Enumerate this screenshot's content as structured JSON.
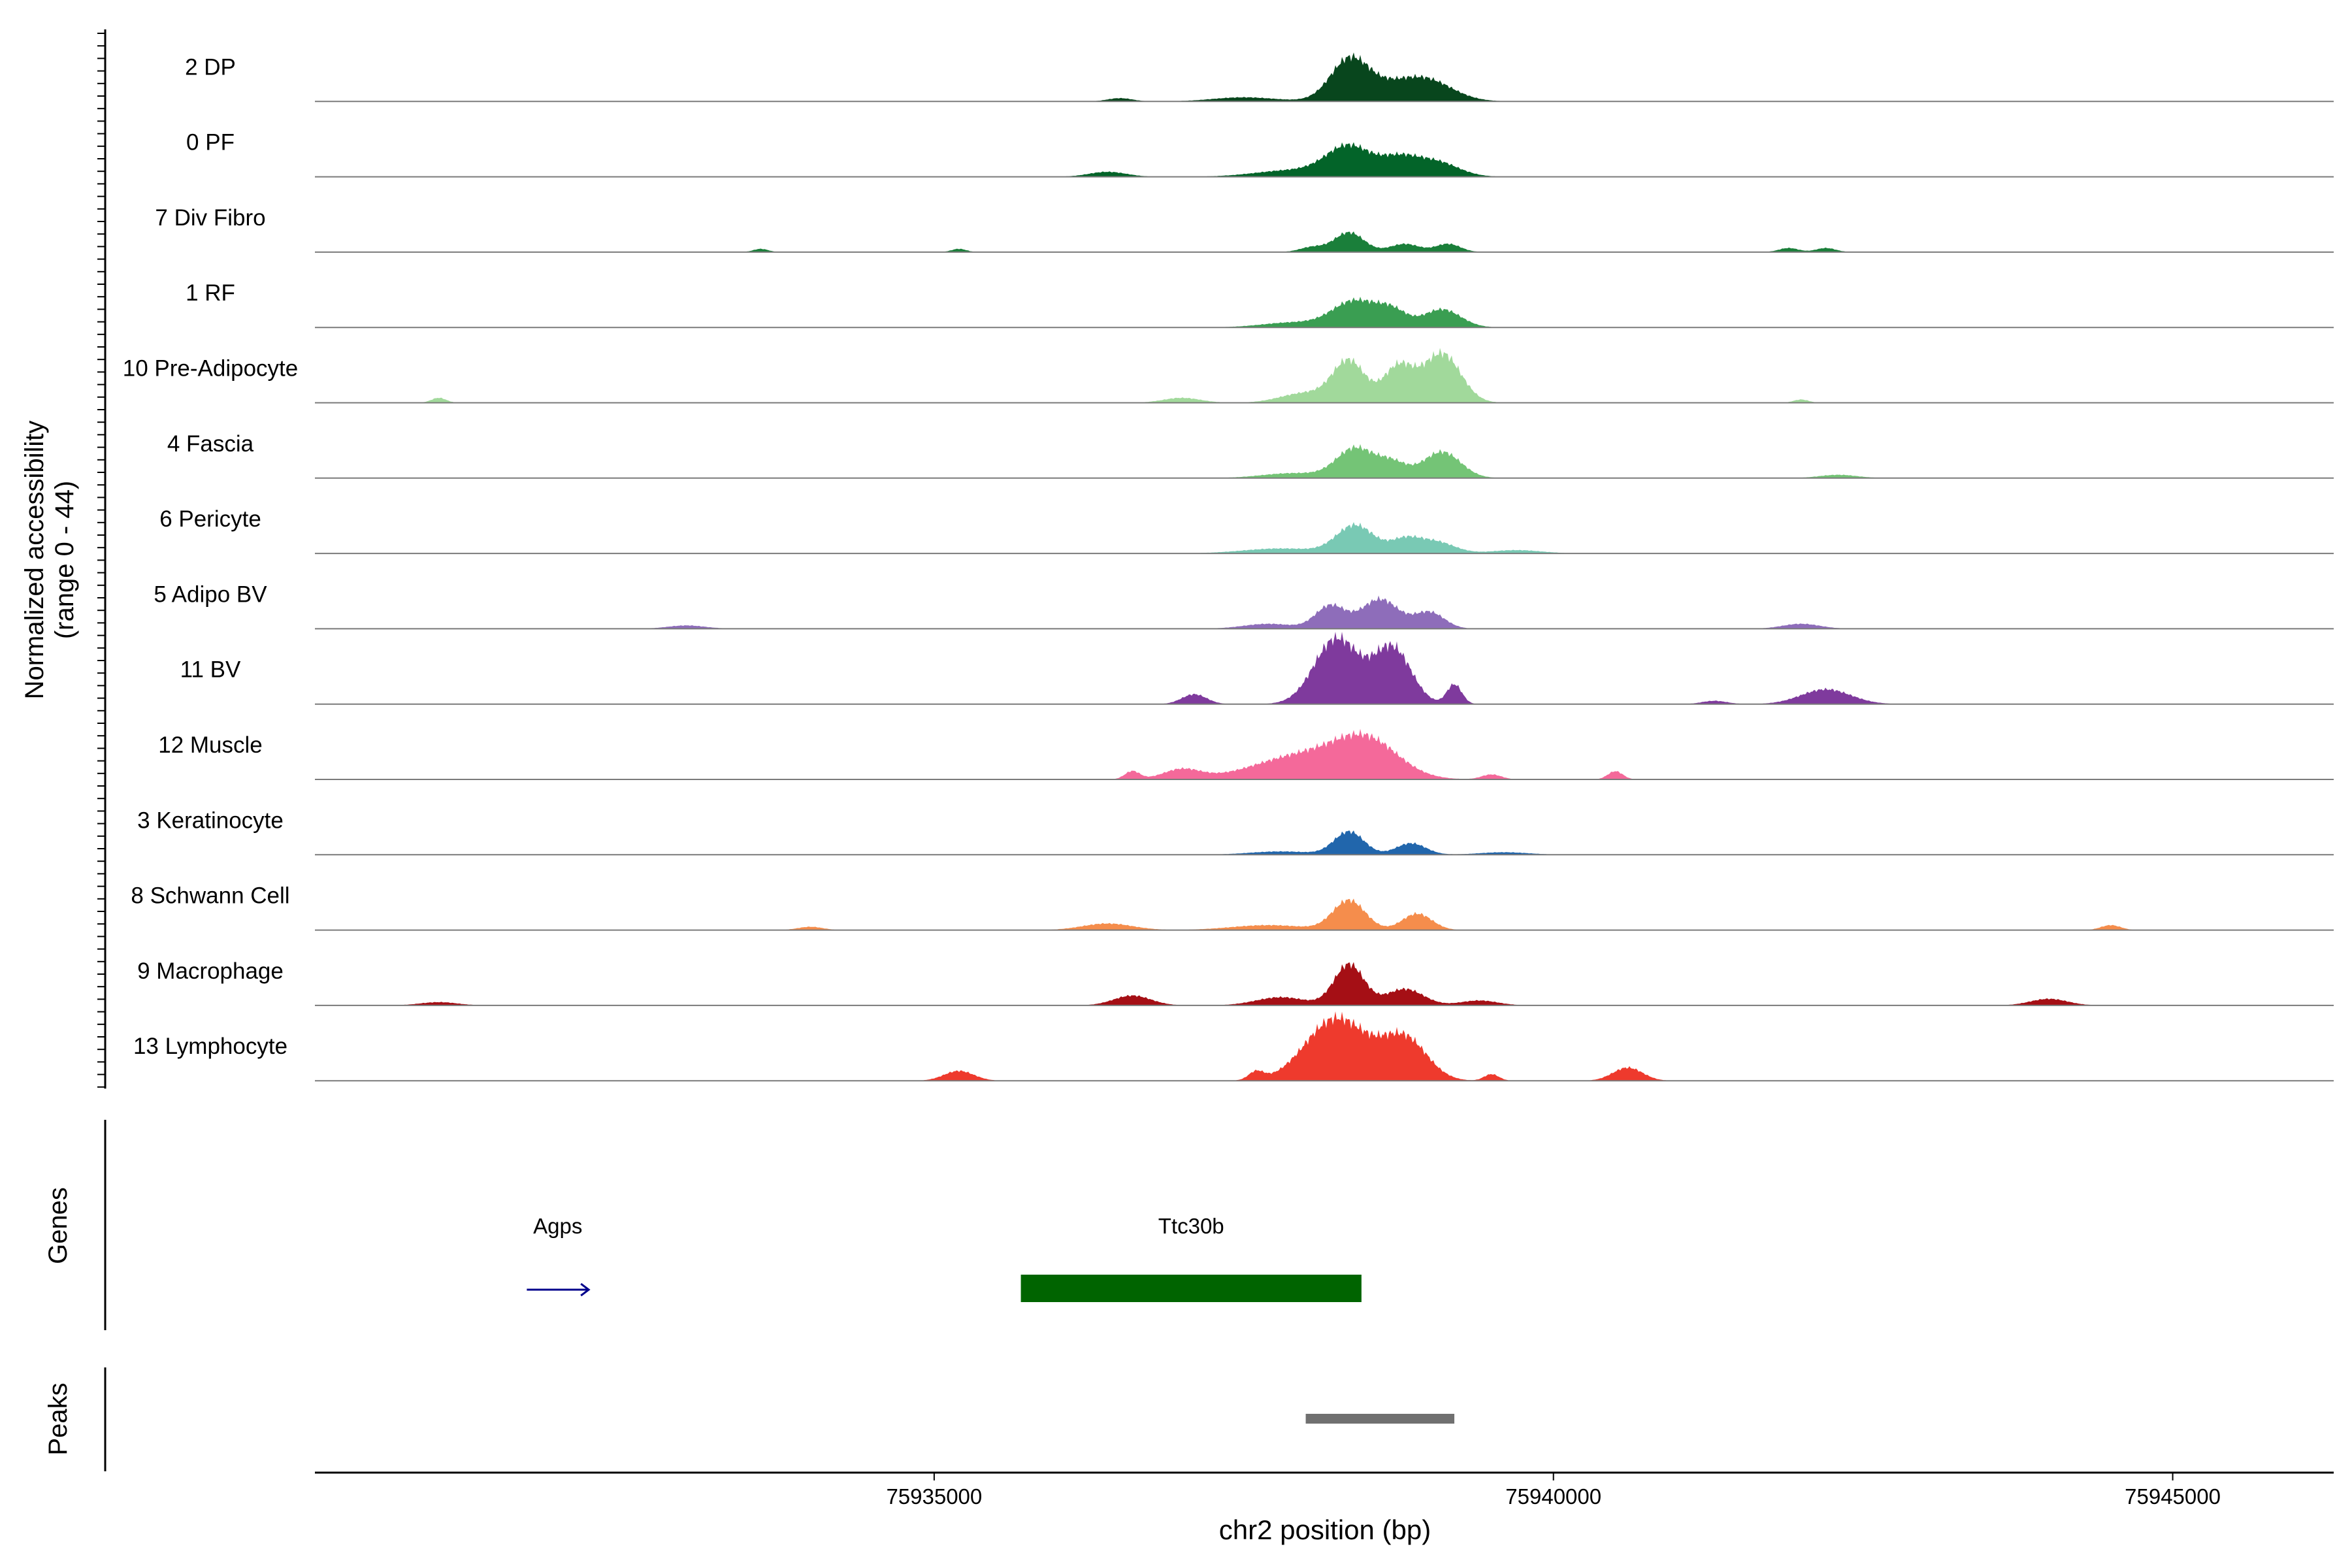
{
  "chart_data": {
    "type": "area",
    "title": "",
    "ylabel_line1": "Normalized accessibility",
    "ylabel_line2": "(range 0 - 44)",
    "y_range": [
      0,
      44
    ],
    "xlabel": "chr2 position (bp)",
    "xlim": [
      75930000,
      75946300
    ],
    "x_ticks": [
      75935000,
      75940000,
      75945000
    ],
    "x_tick_labels": [
      "75935000",
      "75940000",
      "75945000"
    ],
    "tracks": [
      {
        "name": "2 DP",
        "color": "#08461d",
        "base": 0.02,
        "peaks": [
          [
            75938350,
            150,
            22
          ],
          [
            75938700,
            300,
            10
          ],
          [
            75939000,
            200,
            8
          ],
          [
            75937500,
            250,
            2.5
          ],
          [
            75936500,
            100,
            2
          ]
        ]
      },
      {
        "name": "0 PF",
        "color": "#036429",
        "base": 0.02,
        "peaks": [
          [
            75938350,
            180,
            18
          ],
          [
            75938750,
            150,
            10
          ],
          [
            75939050,
            180,
            9
          ],
          [
            75937900,
            300,
            4
          ],
          [
            75936400,
            150,
            3
          ]
        ]
      },
      {
        "name": "7 Div Fibro",
        "color": "#1a7f3a",
        "base": 0.0,
        "peaks": [
          [
            75938350,
            120,
            12
          ],
          [
            75938050,
            100,
            3
          ],
          [
            75938800,
            120,
            5
          ],
          [
            75939150,
            100,
            5
          ],
          [
            75935200,
            60,
            2
          ],
          [
            75941900,
            80,
            2.5
          ],
          [
            75942200,
            80,
            2.5
          ],
          [
            75933600,
            60,
            2
          ]
        ]
      },
      {
        "name": "1 RF",
        "color": "#3a9e52",
        "base": 0.02,
        "peaks": [
          [
            75938400,
            180,
            16
          ],
          [
            75938700,
            120,
            9
          ],
          [
            75939100,
            150,
            11
          ],
          [
            75937900,
            250,
            3
          ]
        ]
      },
      {
        "name": "10 Pre-Adipocyte",
        "color": "#a1d99b",
        "base": 0.0,
        "peaks": [
          [
            75938350,
            130,
            25
          ],
          [
            75938750,
            120,
            22
          ],
          [
            75939100,
            150,
            30
          ],
          [
            75938000,
            200,
            6
          ],
          [
            75937000,
            150,
            3
          ],
          [
            75931000,
            60,
            3
          ],
          [
            75942000,
            60,
            2
          ]
        ]
      },
      {
        "name": "4 Fascia",
        "color": "#74c476",
        "base": 0.02,
        "peaks": [
          [
            75938400,
            150,
            18
          ],
          [
            75938700,
            120,
            9
          ],
          [
            75939100,
            150,
            16
          ],
          [
            75937900,
            250,
            3
          ],
          [
            75942300,
            150,
            2
          ]
        ]
      },
      {
        "name": "6 Pericyte",
        "color": "#79c9b4",
        "base": 0.02,
        "peaks": [
          [
            75938400,
            150,
            17
          ],
          [
            75938800,
            120,
            8
          ],
          [
            75939050,
            150,
            7
          ],
          [
            75937800,
            300,
            3
          ],
          [
            75939700,
            200,
            2
          ]
        ]
      },
      {
        "name": "5 Adipo BV",
        "color": "#8e6dba",
        "base": 0.02,
        "peaks": [
          [
            75938200,
            120,
            14
          ],
          [
            75938600,
            150,
            18
          ],
          [
            75939000,
            120,
            10
          ],
          [
            75937700,
            200,
            3
          ],
          [
            75933000,
            150,
            2
          ],
          [
            75942000,
            150,
            3
          ]
        ]
      },
      {
        "name": "11 BV",
        "color": "#7f3a9d",
        "base": 0.0,
        "peaks": [
          [
            75938250,
            180,
            40
          ],
          [
            75938700,
            150,
            34
          ],
          [
            75937100,
            100,
            6
          ],
          [
            75939200,
            60,
            12
          ],
          [
            75942200,
            200,
            9
          ],
          [
            75941300,
            100,
            2
          ]
        ]
      },
      {
        "name": "12 Muscle",
        "color": "#f4699a",
        "base": 0.0,
        "peaks": [
          [
            75938000,
            400,
            15
          ],
          [
            75938500,
            250,
            20
          ],
          [
            75937000,
            150,
            6
          ],
          [
            75936600,
            60,
            5
          ],
          [
            75940500,
            60,
            5
          ],
          [
            75939500,
            80,
            3
          ]
        ]
      },
      {
        "name": "3 Keratinocyte",
        "color": "#2166ac",
        "base": 0.02,
        "peaks": [
          [
            75938350,
            120,
            14
          ],
          [
            75938850,
            120,
            7
          ],
          [
            75937800,
            250,
            2
          ],
          [
            75939600,
            200,
            1.5
          ]
        ]
      },
      {
        "name": "8 Schwann Cell",
        "color": "#f58d4c",
        "base": 0.0,
        "peaks": [
          [
            75938350,
            130,
            18
          ],
          [
            75938900,
            120,
            10
          ],
          [
            75937700,
            300,
            3
          ],
          [
            75936400,
            200,
            4
          ],
          [
            75934000,
            100,
            2
          ],
          [
            75944500,
            80,
            3
          ]
        ]
      },
      {
        "name": "9 Macrophage",
        "color": "#a50f15",
        "base": 0.0,
        "peaks": [
          [
            75938350,
            120,
            25
          ],
          [
            75938800,
            150,
            10
          ],
          [
            75937800,
            200,
            5
          ],
          [
            75936600,
            150,
            6
          ],
          [
            75939400,
            150,
            3
          ],
          [
            75944000,
            150,
            4
          ],
          [
            75931000,
            150,
            2
          ]
        ]
      },
      {
        "name": "13 Lymphocyte",
        "color": "#ee3a2d",
        "base": 0.0,
        "peaks": [
          [
            75938250,
            250,
            38
          ],
          [
            75938800,
            180,
            25
          ],
          [
            75935200,
            120,
            6
          ],
          [
            75940600,
            120,
            8
          ],
          [
            75937600,
            60,
            5
          ],
          [
            75939500,
            60,
            4
          ]
        ]
      }
    ],
    "genes_label": "Genes",
    "genes": [
      {
        "name": "Agps",
        "start": 75931500,
        "end": 75932000,
        "strand": "+",
        "color": "#00008b"
      },
      {
        "name": "Ttc30b",
        "start": 75935700,
        "end": 75938450,
        "strand": "-",
        "color": "#006400"
      }
    ],
    "peaks_label": "Peaks",
    "peak_regions": [
      {
        "start": 75938000,
        "end": 75939200,
        "color": "#707070"
      }
    ]
  }
}
